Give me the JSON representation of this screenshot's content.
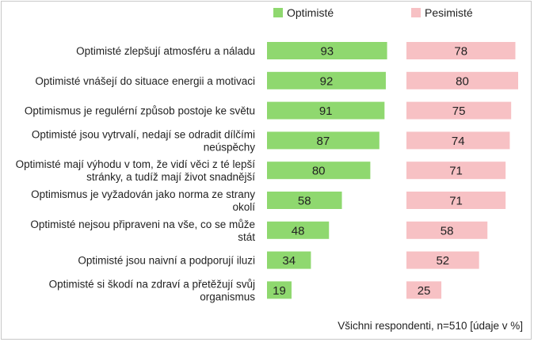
{
  "chart_data": {
    "type": "bar",
    "orientation": "horizontal",
    "categories": [
      [
        "Optimisté zlepšují atmosféru a náladu"
      ],
      [
        "Optimisté vnášejí do situace energii a motivaci"
      ],
      [
        "Optimismus je regulérní způsob postoje ke světu"
      ],
      [
        "Optimisté jsou vytrvalí, nedají se odradit dílčími",
        "neúspěchy"
      ],
      [
        "Optimisté mají výhodu v tom, že vidí věci z té lepší",
        "stránky, a tudíž mají život snadnější"
      ],
      [
        "Optimismus je vyžadován jako norma ze strany",
        "okolí"
      ],
      [
        "Optimisté nejsou připraveni na vše, co se může",
        "stát"
      ],
      [
        "Optimisté jsou naivní a podporují iluzi"
      ],
      [
        "Optimisté si škodí na zdraví a přetěžují svůj",
        "organismus"
      ]
    ],
    "series": [
      {
        "name": "Optimisté",
        "color": "#8fd86f",
        "values": [
          93,
          92,
          91,
          87,
          80,
          58,
          48,
          34,
          19
        ]
      },
      {
        "name": "Pesimisté",
        "color": "#f7c1c4",
        "values": [
          78,
          80,
          75,
          74,
          71,
          71,
          58,
          52,
          25
        ]
      }
    ],
    "xlim": [
      0,
      100
    ],
    "legend_position": "top",
    "grid": false
  },
  "footnote": "Všichni respondenti, n=510 [údaje v %]"
}
